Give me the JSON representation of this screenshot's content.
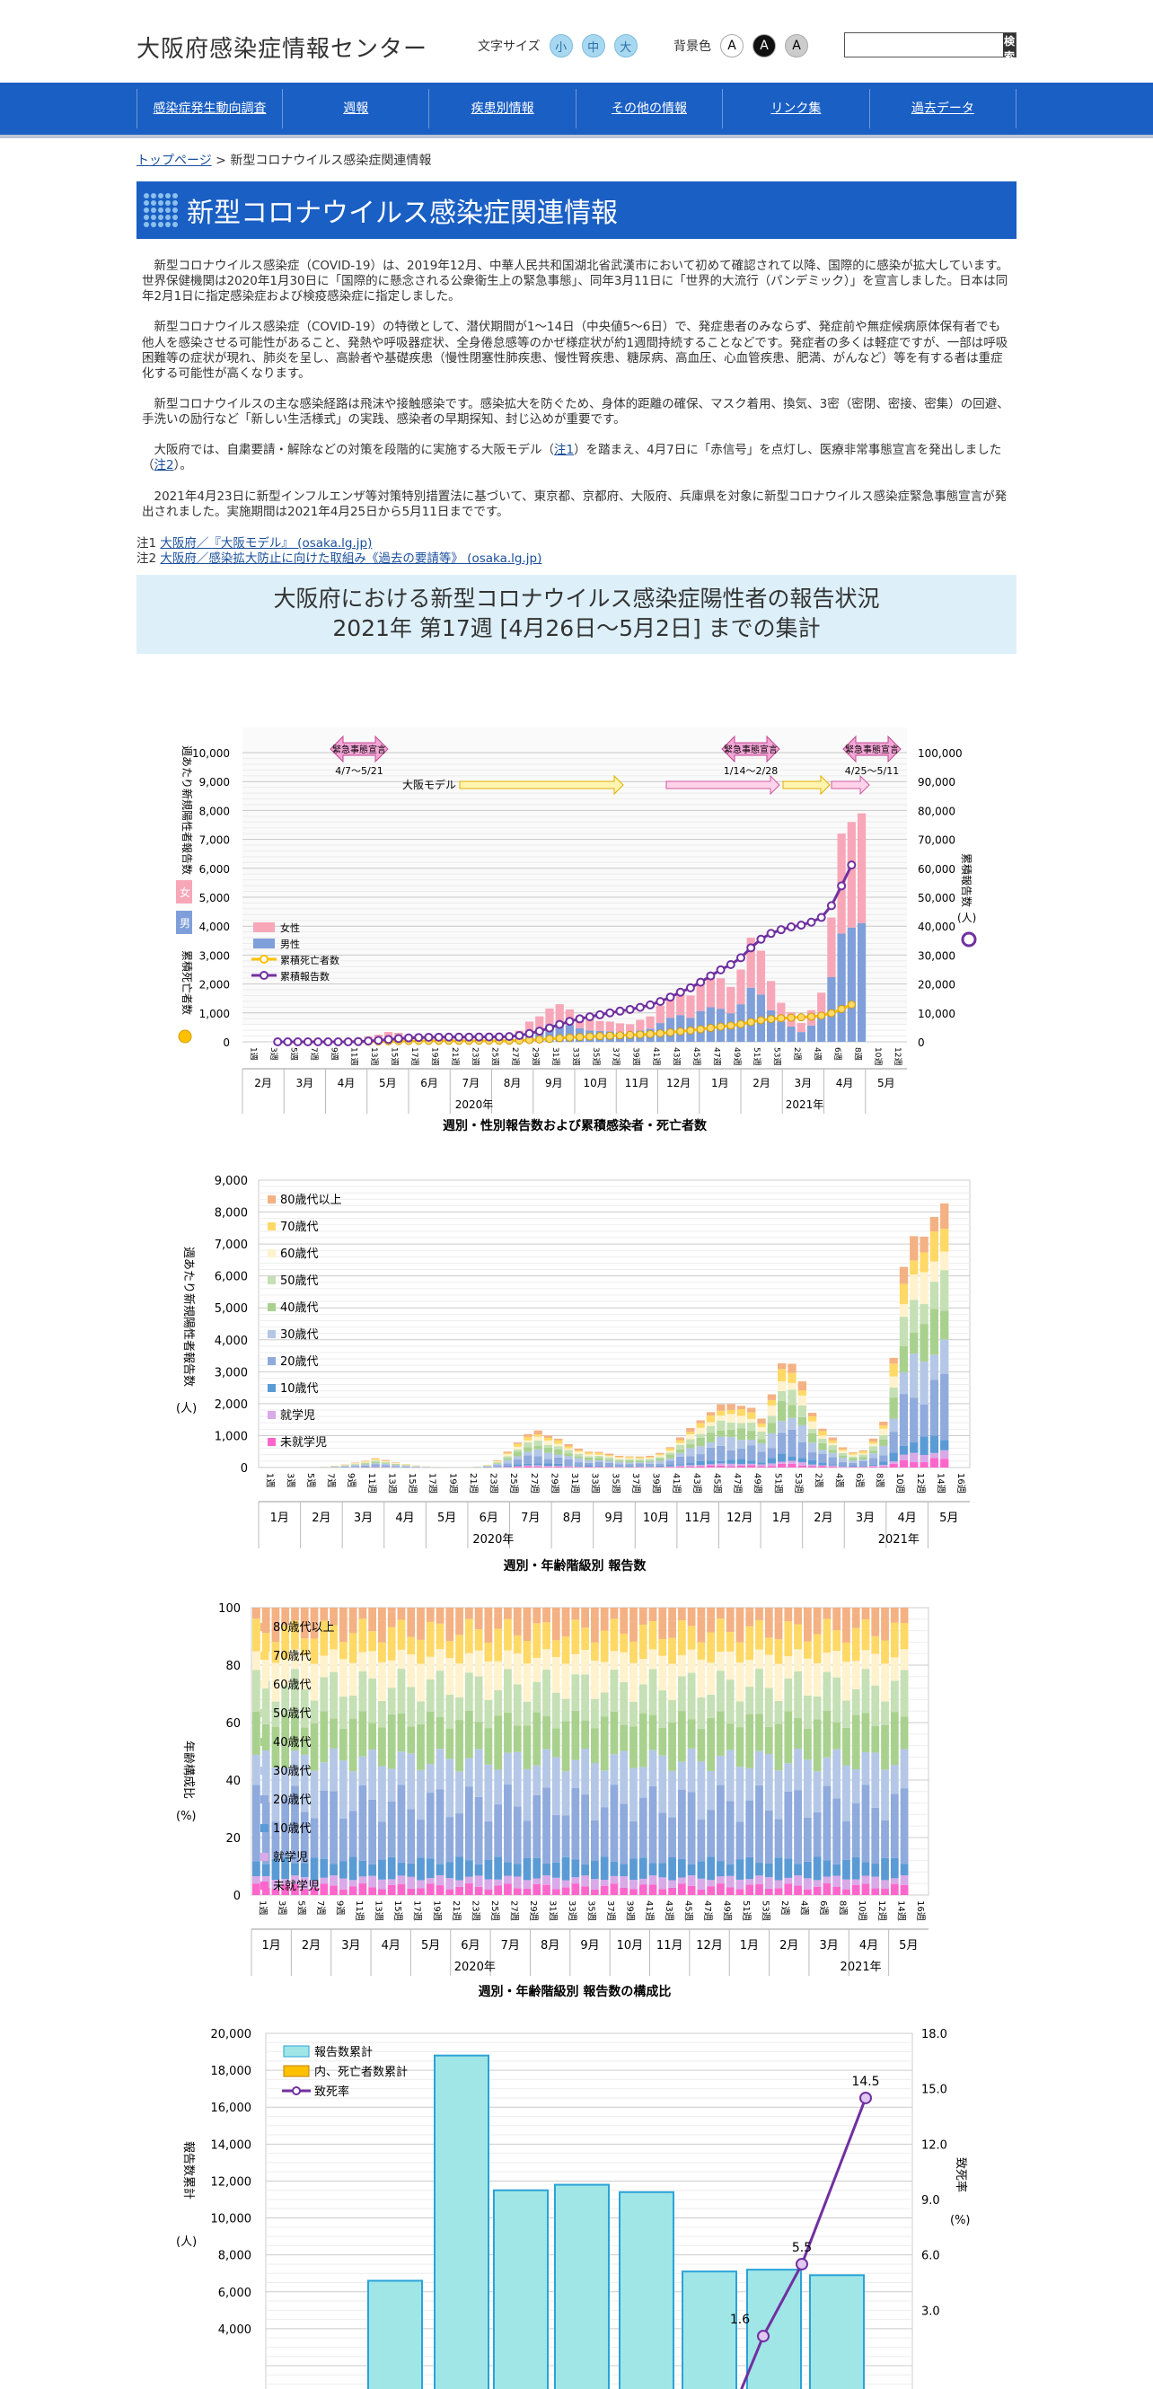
{
  "header": {
    "site_title": "大阪府感染症情報センター",
    "font_size_label": "文字サイズ",
    "font_sizes": [
      "小",
      "中",
      "大"
    ],
    "bg_label": "背景色",
    "bg_options": [
      "A",
      "A",
      "A"
    ],
    "search_placeholder": "",
    "search_button": "検索"
  },
  "nav": [
    "感染症発生動向調査",
    "週報",
    "疾患別情報",
    "その他の情報",
    "リンク集",
    "過去データ"
  ],
  "breadcrumb": {
    "home": "トップページ",
    "sep": " > ",
    "current": "新型コロナウイルス感染症関連情報"
  },
  "page_title": "新型コロナウイルス感染症関連情報",
  "paragraphs": {
    "p1": "新型コロナウイルス感染症（COVID-19）は、2019年12月、中華人民共和国湖北省武漢市において初めて確認されて以降、国際的に感染が拡大しています。世界保健機関は2020年1月30日に「国際的に懸念される公衆衛生上の緊急事態」、同年3月11日に「世界的大流行（パンデミック）」を宣言しました。日本は同年2月1日に指定感染症および検疫感染症に指定しました。",
    "p2": "新型コロナウイルス感染症（COVID-19）の特徴として、潜伏期間が1～14日（中央値5～6日）で、発症患者のみならず、発症前や無症候病原体保有者でも他人を感染させる可能性があること、発熱や呼吸器症状、全身倦怠感等のかぜ様症状が約1週間持続することなどです。発症者の多くは軽症ですが、一部は呼吸困難等の症状が現れ、肺炎を呈し、高齢者や基礎疾患（慢性閉塞性肺疾患、慢性腎疾患、糖尿病、高血圧、心血管疾患、肥満、がんなど）等を有する者は重症化する可能性が高くなります。",
    "p3": "新型コロナウイルスの主な感染経路は飛沫や接触感染です。感染拡大を防ぐため、身体的距離の確保、マスク着用、換気、3密（密閉、密接、密集）の回避、手洗いの励行など「新しい生活様式」の実践、感染者の早期探知、封じ込めが重要です。",
    "p4a": "大阪府では、自粛要請・解除などの対策を段階的に実施する大阪モデル（",
    "p4_n1": "注1",
    "p4b": "）を踏まえ、4月7日に「赤信号」を点灯し、医療非常事態宣言を発出しました（",
    "p4_n2": "注2",
    "p4c": "）。",
    "p5": "2021年4月23日に新型インフルエンザ等対策特別措置法に基づいて、東京都、京都府、大阪府、兵庫県を対象に新型コロナウイルス感染症緊急事態宣言が発出されました。実施期間は2021年4月25日から5月11日までです。"
  },
  "notes": [
    {
      "label": "注1 ",
      "link": "大阪府／『大阪モデル』 (osaka.lg.jp)"
    },
    {
      "label": "注2 ",
      "link": "大阪府／感染拡大防止に向けた取組み《過去の要請等》 (osaka.lg.jp)"
    }
  ],
  "banner": {
    "line1": "大阪府における新型コロナウイルス感染症陽性者の報告状況",
    "line2": "2021年 第17週 [4月26日～5月2日] までの集計"
  },
  "chart1": {
    "caption": "週別・性別報告数および累積感染者・死亡者数",
    "ylabel_left": "週あたり新規陽性者報告数",
    "ylabel_left2": "累積死亡者数",
    "ylabel_right": "累積報告数",
    "ylabel_right_unit": "(人)",
    "sex_female": "女",
    "sex_male": "男",
    "legend": [
      "女性",
      "男性",
      "累積死亡者数",
      "累積報告数"
    ],
    "yticks_left": [
      "0",
      "1,000",
      "2,000",
      "3,000",
      "4,000",
      "5,000",
      "6,000",
      "7,000",
      "8,000",
      "9,000",
      "10,000"
    ],
    "yticks_right": [
      "0",
      "10,000",
      "20,000",
      "30,000",
      "40,000",
      "50,000",
      "60,000",
      "70,000",
      "80,000",
      "90,000",
      "100,000"
    ],
    "events": [
      {
        "label": "緊急事態宣言",
        "dates": "4/7～5/21"
      },
      {
        "label": "緊急事態宣言",
        "dates": "1/14～2/28"
      },
      {
        "label": "緊急事態宣言",
        "dates": "4/25～5/11"
      }
    ],
    "osaka_model": "大阪モデル",
    "months": [
      "2月",
      "3月",
      "4月",
      "5月",
      "6月",
      "7月",
      "8月",
      "9月",
      "10月",
      "11月",
      "12月",
      "1月",
      "2月",
      "3月",
      "4月",
      "5月"
    ],
    "years": [
      "2020年",
      "2021年"
    ]
  },
  "chart2": {
    "caption": "週別・年齢階級別 報告数",
    "ylabel": "週あたり新規陽性者報告数",
    "yunit": "(人)",
    "yticks": [
      "0",
      "1,000",
      "2,000",
      "3,000",
      "4,000",
      "5,000",
      "6,000",
      "7,000",
      "8,000",
      "9,000"
    ],
    "legend": [
      "80歳代以上",
      "70歳代",
      "60歳代",
      "50歳代",
      "40歳代",
      "30歳代",
      "20歳代",
      "10歳代",
      "就学児",
      "未就学児"
    ],
    "months": [
      "1月",
      "2月",
      "3月",
      "4月",
      "5月",
      "6月",
      "7月",
      "8月",
      "9月",
      "10月",
      "11月",
      "12月",
      "1月",
      "2月",
      "3月",
      "4月",
      "5月"
    ],
    "years": [
      "2020年",
      "2021年"
    ]
  },
  "chart3": {
    "caption": "週別・年齢階級別 報告数の構成比",
    "ylabel": "年齢構成比",
    "yunit": "(%)",
    "yticks": [
      "0",
      "20",
      "40",
      "60",
      "80",
      "100"
    ],
    "legend": [
      "80歳代以上",
      "70歳代",
      "60歳代",
      "50歳代",
      "40歳代",
      "30歳代",
      "20歳代",
      "10歳代",
      "就学児",
      "未就学児"
    ]
  },
  "chart4": {
    "legend": [
      "報告数累計",
      "内、死亡者数累計",
      "致死率"
    ],
    "ylabel": "報告数累計",
    "yunit": "(人)",
    "ylabel_right": "致死率",
    "yunit_right": "(%)",
    "yticks": [
      "4,000",
      "6,000",
      "8,000",
      "10,000",
      "12,000",
      "14,000",
      "16,000",
      "18,000",
      "20,000"
    ],
    "yticks_right": [
      "3.0",
      "6.0",
      "9.0",
      "12.0",
      "15.0",
      "18.0"
    ],
    "point_labels": [
      "1.6",
      "5.5",
      "14.5"
    ]
  },
  "colors": {
    "blue_nav": "#1a5fc4",
    "male": "#7f9fda",
    "female": "#f7a7b8",
    "deaths": "#ffc000",
    "cum": "#7030a0",
    "banner": "#ddf0fa"
  },
  "chart_data": [
    {
      "type": "bar",
      "title": "週別・性別報告数および累積感染者・死亡者数",
      "series": [
        {
          "name": "女性"
        },
        {
          "name": "男性"
        },
        {
          "name": "累積死亡者数"
        },
        {
          "name": "累積報告数"
        }
      ],
      "ylim": [
        0,
        10000
      ],
      "y2lim": [
        0,
        100000
      ]
    },
    {
      "type": "bar",
      "title": "週別・年齢階級別 報告数",
      "ylim": [
        0,
        9000
      ]
    },
    {
      "type": "bar",
      "title": "週別・年齢階級別 報告数の構成比",
      "ylim": [
        0,
        100
      ]
    },
    {
      "type": "bar",
      "ylim": [
        2000,
        20000
      ],
      "y2lim": [
        0,
        18
      ],
      "point_labels": [
        1.6,
        5.5,
        14.5
      ]
    }
  ]
}
